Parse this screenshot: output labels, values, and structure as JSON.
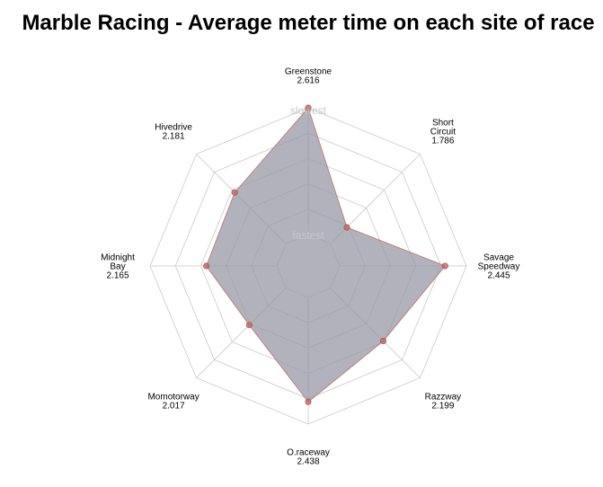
{
  "chart_data": {
    "type": "radar",
    "title": "Marble Racing - Average meter time on each site of race",
    "categories": [
      [
        "Greenstone"
      ],
      [
        "Short",
        "Circuit"
      ],
      [
        "Savage",
        "Speedway"
      ],
      [
        "Razzway"
      ],
      [
        "O.raceway"
      ],
      [
        "Momotorway"
      ],
      [
        "Midnight",
        "Bay"
      ],
      [
        "Hivedrive"
      ]
    ],
    "value_labels": [
      "2.616",
      "1.786",
      "2.445",
      "2.199",
      "2.438",
      "2.017",
      "2.165",
      "2.181"
    ],
    "values": [
      2.616,
      1.786,
      2.445,
      2.199,
      2.438,
      2.017,
      2.165,
      2.181
    ],
    "scale_min": 1.6,
    "scale_max": 2.616,
    "grid_levels": 5,
    "grid": true,
    "scale_labels": {
      "outer": "slowest",
      "inner": "fastest"
    },
    "colors": {
      "fill": "#9898a6",
      "fill_opacity": 0.75,
      "outline": "#c08080",
      "points": "#c86464",
      "grid": "#c8c8c8",
      "scale_text": "#c8c8c8"
    }
  }
}
